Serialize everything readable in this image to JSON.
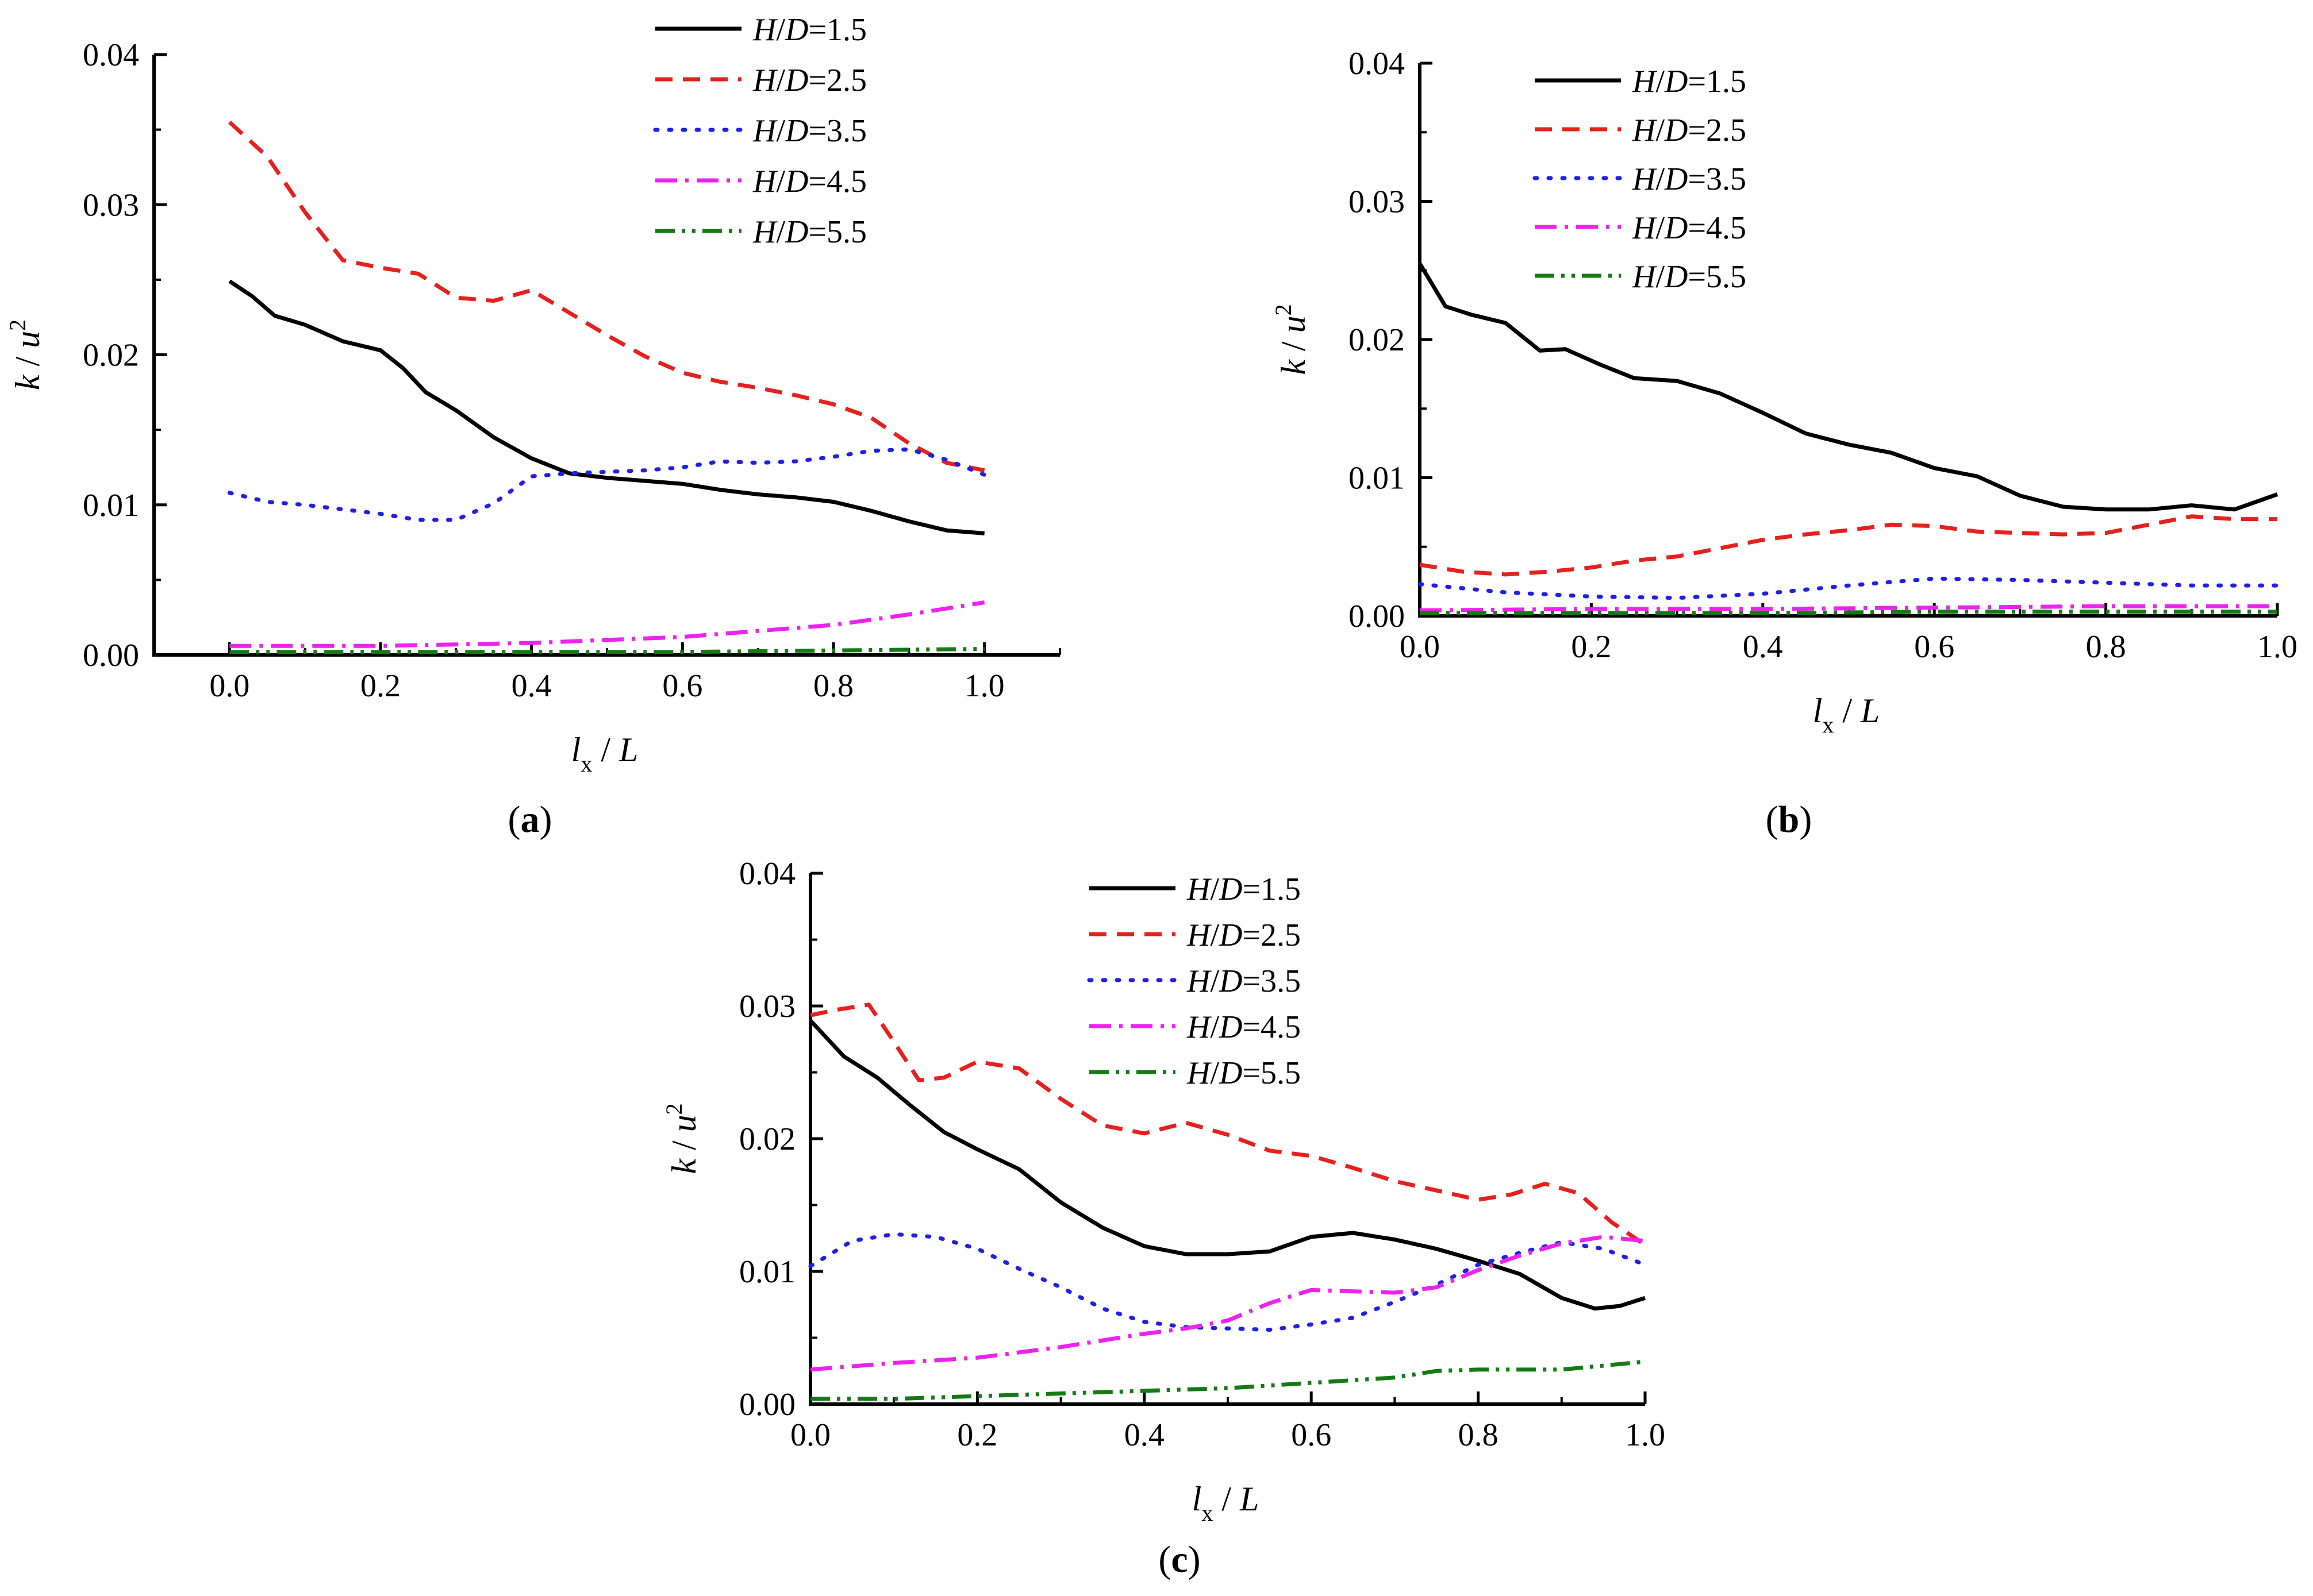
{
  "figure": {
    "series_styles": [
      {
        "name": "H/D=1.5",
        "color": "#000000",
        "dash": "solid"
      },
      {
        "name": "H/D=2.5",
        "color": "#e6201c",
        "dash": "dash"
      },
      {
        "name": "H/D=3.5",
        "color": "#1f1fe6",
        "dash": "dot"
      },
      {
        "name": "H/D=4.5",
        "color": "#ee22ee",
        "dash": "dashdot"
      },
      {
        "name": "H/D=5.5",
        "color": "#157a15",
        "dash": "dashdotdot"
      }
    ]
  },
  "chart_data": [
    {
      "type": "line",
      "panel_label": "(a)",
      "xlabel": "l_x / L",
      "ylabel": "k / u^2",
      "xlim": [
        -0.1,
        1.1
      ],
      "ylim": [
        0,
        0.04
      ],
      "xticks": [
        "0.0",
        "0.2",
        "0.4",
        "0.6",
        "0.8",
        "1.0"
      ],
      "yticks": [
        "0.00",
        "0.01",
        "0.02",
        "0.03",
        "0.04"
      ],
      "legend_position": "top-center",
      "legend": [
        "H/D=1.5",
        "H/D=2.5",
        "H/D=3.5",
        "H/D=4.5",
        "H/D=5.5"
      ],
      "series": [
        {
          "name": "H/D=1.5",
          "x": [
            0,
            0.03,
            0.06,
            0.1,
            0.15,
            0.2,
            0.23,
            0.26,
            0.3,
            0.35,
            0.4,
            0.45,
            0.5,
            0.55,
            0.6,
            0.65,
            0.7,
            0.75,
            0.8,
            0.85,
            0.9,
            0.95,
            1.0
          ],
          "values": [
            0.0249,
            0.0239,
            0.0226,
            0.022,
            0.0209,
            0.0203,
            0.0191,
            0.0175,
            0.0163,
            0.0145,
            0.0131,
            0.0121,
            0.0118,
            0.0116,
            0.0114,
            0.011,
            0.0107,
            0.0105,
            0.0102,
            0.0096,
            0.0089,
            0.0083,
            0.0081
          ]
        },
        {
          "name": "H/D=2.5",
          "x": [
            0,
            0.05,
            0.1,
            0.15,
            0.2,
            0.25,
            0.3,
            0.35,
            0.4,
            0.45,
            0.5,
            0.55,
            0.6,
            0.65,
            0.7,
            0.75,
            0.8,
            0.85,
            0.9,
            0.95,
            1.0
          ],
          "values": [
            0.0355,
            0.0332,
            0.0295,
            0.0263,
            0.0258,
            0.0254,
            0.0238,
            0.0236,
            0.0243,
            0.0228,
            0.0213,
            0.0199,
            0.0188,
            0.0182,
            0.0178,
            0.0173,
            0.0167,
            0.0158,
            0.0141,
            0.0128,
            0.0123
          ]
        },
        {
          "name": "H/D=3.5",
          "x": [
            0,
            0.05,
            0.1,
            0.15,
            0.2,
            0.25,
            0.3,
            0.35,
            0.4,
            0.45,
            0.5,
            0.55,
            0.6,
            0.65,
            0.7,
            0.75,
            0.8,
            0.85,
            0.9,
            0.95,
            1.0
          ],
          "values": [
            0.0108,
            0.0102,
            0.01,
            0.0097,
            0.0094,
            0.009,
            0.009,
            0.0101,
            0.0119,
            0.0121,
            0.0122,
            0.0123,
            0.0125,
            0.0129,
            0.0128,
            0.0129,
            0.0132,
            0.0136,
            0.0137,
            0.013,
            0.012
          ]
        },
        {
          "name": "H/D=4.5",
          "x": [
            0,
            0.1,
            0.2,
            0.3,
            0.4,
            0.5,
            0.6,
            0.7,
            0.8,
            0.9,
            1.0
          ],
          "values": [
            0.0006,
            0.0006,
            0.0006,
            0.0007,
            0.0008,
            0.001,
            0.0012,
            0.0016,
            0.002,
            0.0027,
            0.0035
          ]
        },
        {
          "name": "H/D=5.5",
          "x": [
            0,
            0.2,
            0.4,
            0.6,
            0.8,
            1.0
          ],
          "values": [
            0.0002,
            0.0002,
            0.0002,
            0.0002,
            0.0003,
            0.0004
          ]
        }
      ]
    },
    {
      "type": "line",
      "panel_label": "(b)",
      "xlabel": "l_x / L",
      "ylabel": "k / u^2",
      "xlim": [
        0,
        1
      ],
      "ylim": [
        0,
        0.04
      ],
      "xticks": [
        "0.0",
        "0.2",
        "0.4",
        "0.6",
        "0.8",
        "1.0"
      ],
      "yticks": [
        "0.00",
        "0.01",
        "0.02",
        "0.03",
        "0.04"
      ],
      "legend_position": "top-left",
      "legend": [
        "H/D=1.5",
        "H/D=2.5",
        "H/D=3.5",
        "H/D=4.5",
        "H/D=5.5"
      ],
      "series": [
        {
          "name": "H/D=1.5",
          "x": [
            0,
            0.03,
            0.06,
            0.1,
            0.14,
            0.17,
            0.21,
            0.25,
            0.3,
            0.35,
            0.4,
            0.45,
            0.5,
            0.55,
            0.6,
            0.65,
            0.7,
            0.75,
            0.8,
            0.85,
            0.9,
            0.95,
            1.0
          ],
          "values": [
            0.0255,
            0.0224,
            0.0218,
            0.0212,
            0.0192,
            0.0193,
            0.0182,
            0.0172,
            0.017,
            0.0161,
            0.0147,
            0.0132,
            0.0124,
            0.0118,
            0.0107,
            0.0101,
            0.0087,
            0.0079,
            0.0077,
            0.0077,
            0.008,
            0.0077,
            0.0088
          ]
        },
        {
          "name": "H/D=2.5",
          "x": [
            0,
            0.05,
            0.1,
            0.15,
            0.2,
            0.25,
            0.3,
            0.35,
            0.4,
            0.45,
            0.5,
            0.55,
            0.6,
            0.65,
            0.7,
            0.75,
            0.8,
            0.85,
            0.9,
            0.95,
            1.0
          ],
          "values": [
            0.0037,
            0.0032,
            0.003,
            0.0032,
            0.0035,
            0.004,
            0.0043,
            0.0049,
            0.0055,
            0.0059,
            0.0062,
            0.0066,
            0.0065,
            0.0061,
            0.006,
            0.0059,
            0.006,
            0.0066,
            0.0072,
            0.007,
            0.007
          ]
        },
        {
          "name": "H/D=3.5",
          "x": [
            0,
            0.1,
            0.2,
            0.3,
            0.4,
            0.5,
            0.6,
            0.7,
            0.8,
            0.9,
            1.0
          ],
          "values": [
            0.0023,
            0.0017,
            0.0014,
            0.0013,
            0.0016,
            0.0022,
            0.0027,
            0.0026,
            0.0024,
            0.0022,
            0.0022
          ]
        },
        {
          "name": "H/D=4.5",
          "x": [
            0,
            0.2,
            0.4,
            0.6,
            0.8,
            1.0
          ],
          "values": [
            0.0004,
            0.0005,
            0.0005,
            0.0006,
            0.0007,
            0.0007
          ]
        },
        {
          "name": "H/D=5.5",
          "x": [
            0,
            0.2,
            0.4,
            0.6,
            0.8,
            1.0
          ],
          "values": [
            0.0002,
            0.0002,
            0.0002,
            0.0003,
            0.0003,
            0.0003
          ]
        }
      ]
    },
    {
      "type": "line",
      "panel_label": "(c)",
      "xlabel": "l_x / L",
      "ylabel": "k / u^2",
      "xlim": [
        0,
        1
      ],
      "ylim": [
        0,
        0.04
      ],
      "xticks": [
        "0.0",
        "0.2",
        "0.4",
        "0.6",
        "0.8",
        "1.0"
      ],
      "yticks": [
        "0.00",
        "0.01",
        "0.02",
        "0.03",
        "0.04"
      ],
      "legend_position": "top-center",
      "legend": [
        "H/D=1.5",
        "H/D=2.5",
        "H/D=3.5",
        "H/D=4.5",
        "H/D=5.5"
      ],
      "series": [
        {
          "name": "H/D=1.5",
          "x": [
            0,
            0.04,
            0.08,
            0.12,
            0.16,
            0.2,
            0.25,
            0.3,
            0.35,
            0.4,
            0.45,
            0.5,
            0.55,
            0.6,
            0.65,
            0.7,
            0.75,
            0.8,
            0.85,
            0.9,
            0.94,
            0.97,
            1.0
          ],
          "values": [
            0.0289,
            0.0262,
            0.0246,
            0.0225,
            0.0205,
            0.0192,
            0.0177,
            0.0152,
            0.0133,
            0.0119,
            0.0113,
            0.0113,
            0.0115,
            0.0126,
            0.0129,
            0.0124,
            0.0117,
            0.0108,
            0.0098,
            0.008,
            0.0072,
            0.0074,
            0.008
          ]
        },
        {
          "name": "H/D=2.5",
          "x": [
            0,
            0.03,
            0.07,
            0.1,
            0.13,
            0.16,
            0.2,
            0.25,
            0.3,
            0.35,
            0.4,
            0.45,
            0.5,
            0.55,
            0.6,
            0.65,
            0.7,
            0.75,
            0.8,
            0.84,
            0.88,
            0.92,
            0.96,
            1.0
          ],
          "values": [
            0.0293,
            0.0297,
            0.0301,
            0.0273,
            0.0244,
            0.0246,
            0.0258,
            0.0253,
            0.023,
            0.021,
            0.0204,
            0.0212,
            0.0203,
            0.0191,
            0.0187,
            0.0178,
            0.0168,
            0.0161,
            0.0154,
            0.0158,
            0.0166,
            0.0159,
            0.0137,
            0.012
          ]
        },
        {
          "name": "H/D=3.5",
          "x": [
            0,
            0.05,
            0.1,
            0.15,
            0.2,
            0.25,
            0.3,
            0.35,
            0.4,
            0.45,
            0.5,
            0.55,
            0.6,
            0.65,
            0.7,
            0.75,
            0.8,
            0.85,
            0.9,
            0.95,
            1.0
          ],
          "values": [
            0.0104,
            0.0123,
            0.0128,
            0.0126,
            0.0117,
            0.0102,
            0.0088,
            0.0072,
            0.0062,
            0.0058,
            0.0057,
            0.0056,
            0.006,
            0.0065,
            0.0077,
            0.009,
            0.0105,
            0.0114,
            0.0122,
            0.0117,
            0.0105
          ]
        },
        {
          "name": "H/D=4.5",
          "x": [
            0,
            0.1,
            0.2,
            0.3,
            0.4,
            0.45,
            0.5,
            0.55,
            0.6,
            0.65,
            0.7,
            0.75,
            0.8,
            0.85,
            0.9,
            0.95,
            1.0
          ],
          "values": [
            0.0026,
            0.0031,
            0.0035,
            0.0043,
            0.0053,
            0.0057,
            0.0063,
            0.0076,
            0.0086,
            0.0085,
            0.0084,
            0.0088,
            0.0101,
            0.0112,
            0.0121,
            0.0126,
            0.0123
          ]
        },
        {
          "name": "H/D=5.5",
          "x": [
            0,
            0.1,
            0.2,
            0.3,
            0.4,
            0.5,
            0.6,
            0.7,
            0.75,
            0.8,
            0.9,
            1.0
          ],
          "values": [
            0.0004,
            0.0004,
            0.0006,
            0.0008,
            0.001,
            0.0012,
            0.0016,
            0.002,
            0.0025,
            0.0026,
            0.0026,
            0.0032
          ]
        }
      ]
    }
  ]
}
